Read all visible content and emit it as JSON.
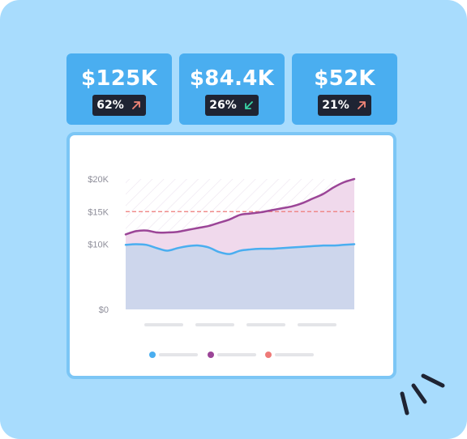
{
  "kpis": [
    {
      "value": "$125K",
      "change": "62%",
      "direction": "up",
      "arrow_color": "#f08577"
    },
    {
      "value": "$84.4K",
      "change": "26%",
      "direction": "down",
      "arrow_color": "#39d4a5"
    },
    {
      "value": "$52K",
      "change": "21%",
      "direction": "up",
      "arrow_color": "#f08577"
    }
  ],
  "colors": {
    "background": "#a8dcfd",
    "kpi_card": "#4aaef0",
    "badge": "#1f2433",
    "series_blue": "#4aaef0",
    "series_purple": "#9b4597",
    "threshold": "#ee7a78"
  },
  "chart_data": {
    "type": "area",
    "title": "",
    "xlabel": "",
    "ylabel": "",
    "y_tick_labels": [
      "$0",
      "$10K",
      "$15K",
      "$20K"
    ],
    "y_ticks": [
      0,
      10000,
      15000,
      20000
    ],
    "ylim": [
      0,
      20000
    ],
    "x": [
      0,
      1,
      2,
      3,
      4,
      5,
      6,
      7,
      8,
      9,
      10,
      11,
      12,
      13,
      14,
      15,
      16,
      17,
      18,
      19,
      20,
      21,
      22
    ],
    "xlim": [
      0,
      22
    ],
    "threshold": 15000,
    "grid": false,
    "legend_position": "bottom",
    "series": [
      {
        "key": "blue",
        "color": "#4aaef0",
        "values": [
          9900,
          10000,
          9900,
          9400,
          9000,
          9400,
          9700,
          9800,
          9500,
          8800,
          8500,
          9000,
          9200,
          9300,
          9300,
          9400,
          9500,
          9600,
          9700,
          9800,
          9800,
          9900,
          10000
        ]
      },
      {
        "key": "purple",
        "color": "#9b4597",
        "values": [
          11500,
          12000,
          12100,
          11800,
          11800,
          11900,
          12200,
          12500,
          12800,
          13300,
          13800,
          14500,
          14700,
          14900,
          15200,
          15500,
          15800,
          16300,
          17000,
          17700,
          18700,
          19500,
          20000
        ]
      }
    ]
  }
}
